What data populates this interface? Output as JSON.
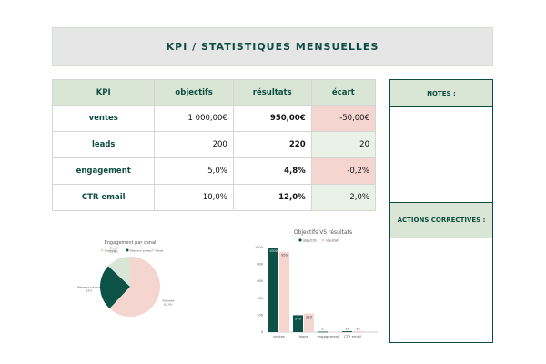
{
  "title": "KPI / STATISTIQUES MENSUELLES",
  "table": {
    "headers": [
      "KPI",
      "objectifs",
      "résultats",
      "écart"
    ],
    "rows": [
      {
        "kpi": "ventes",
        "objectif": "1 000,00€",
        "resultat": "950,00€",
        "ecart": "-50,00€",
        "status": "negative"
      },
      {
        "kpi": "leads",
        "objectif": "200",
        "resultat": "220",
        "ecart": "20",
        "status": "positive"
      },
      {
        "kpi": "engagement",
        "objectif": "5,0%",
        "resultat": "4,8%",
        "ecart": "-0,2%",
        "status": "negative"
      },
      {
        "kpi": "CTR email",
        "objectif": "10,0%",
        "resultat": "12,0%",
        "ecart": "2,0%",
        "status": "positive"
      }
    ]
  },
  "notes": {
    "title": "NOTES :",
    "actions_title": "ACTIONS CORRECTIVES :"
  },
  "colors": {
    "primary": "#0d4d40",
    "pink": "#f5d5d0",
    "light_green": "#d9e6d6"
  },
  "chart_data": [
    {
      "type": "pie",
      "title": "Engagement par canal",
      "legend": "top",
      "categories": [
        "Publicité",
        "Réseaux sociaux",
        "Email"
      ],
      "values": [
        62,
        25,
        13
      ],
      "labels": [
        "Publicité\n62,0%",
        "Réseaux sociaux\n25%",
        "Email\n13,0%"
      ],
      "colors": [
        "#f5d5d0",
        "#0d5247",
        "#d9e6d6"
      ]
    },
    {
      "type": "bar",
      "title": "Objectifs VS résultats",
      "legend": "top",
      "categories": [
        "ventes",
        "leads",
        "engagement",
        "CTR email"
      ],
      "series": [
        {
          "name": "objectifs",
          "values": [
            1000,
            200,
            5,
            10
          ],
          "color": "#0d5247"
        },
        {
          "name": "résultats",
          "values": [
            950,
            220,
            4.8,
            12
          ],
          "color": "#f5d5d0"
        }
      ],
      "ylim": [
        0,
        1000
      ],
      "yticks": [
        0,
        200,
        400,
        600,
        800,
        1000
      ],
      "data_labels": [
        [
          "1000",
          "200",
          "5",
          "10"
        ],
        [
          "950",
          "220",
          "",
          "12"
        ]
      ]
    }
  ]
}
